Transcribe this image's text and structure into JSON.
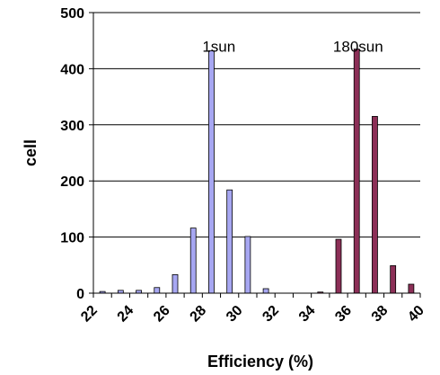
{
  "chart_data": {
    "type": "bar",
    "xlabel": "Efficiency (%)",
    "ylabel": "cell",
    "ylim": [
      0,
      500
    ],
    "yticks": [
      0,
      100,
      200,
      300,
      400,
      500
    ],
    "xlim": [
      22,
      40
    ],
    "xticks": [
      22,
      24,
      26,
      28,
      30,
      32,
      34,
      36,
      38,
      40
    ],
    "grid": "horizontal",
    "legend": "none",
    "colors": {
      "1sun": "#a7a7f2",
      "180sun": "#8c2f57",
      "grid": "#000000"
    },
    "annotations": [
      {
        "text": "1sun",
        "x": 28.0,
        "y": 440
      },
      {
        "text": "180sun",
        "x": 35.2,
        "y": 440
      }
    ],
    "series": [
      {
        "x": [
          22.5,
          23.5,
          24.5,
          25.5,
          26.5,
          27.5,
          28.5,
          29.5,
          30.5,
          31.5
        ],
        "values": [
          3,
          5,
          5,
          10,
          33,
          116,
          432,
          184,
          101,
          8
        ]
      },
      {
        "x": [
          34.5,
          35.5,
          36.5,
          37.5,
          38.5,
          39.5
        ],
        "values": [
          2,
          96,
          435,
          315,
          49,
          16
        ]
      }
    ]
  }
}
